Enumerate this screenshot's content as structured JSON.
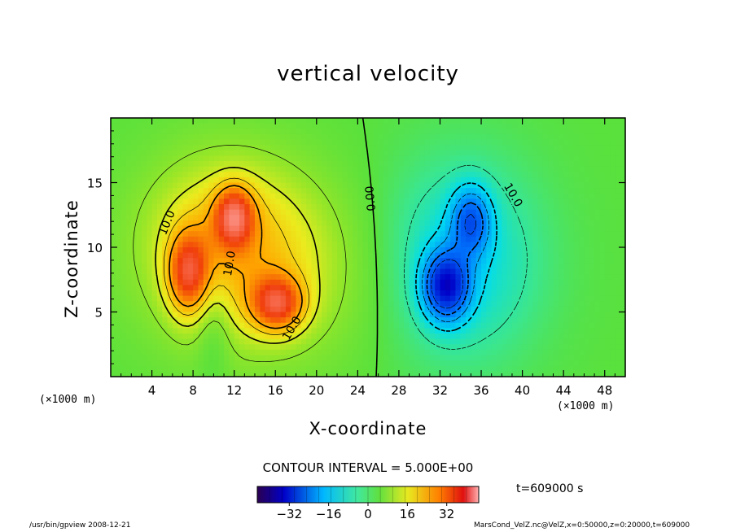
{
  "chart_data": {
    "type": "heatmap",
    "title": "vertical velocity",
    "xlabel": "X-coordinate",
    "ylabel": "Z-coordinate",
    "x_unit": "(×1000 m)",
    "z_unit": "(×1000 m)",
    "xlim": [
      0,
      50
    ],
    "ylim": [
      0,
      20
    ],
    "x_ticks": [
      4,
      8,
      12,
      16,
      20,
      24,
      28,
      32,
      36,
      40,
      44,
      48
    ],
    "y_ticks": [
      5,
      10,
      15
    ],
    "contour_labels": [
      {
        "text": "10.0",
        "x": 5.8,
        "z": 11.8,
        "angle": -68
      },
      {
        "text": "10.0",
        "x": 11.9,
        "z": 8.7,
        "angle": -80
      },
      {
        "text": "10.0",
        "x": 17.9,
        "z": 3.6,
        "angle": -60
      },
      {
        "text": "0.00",
        "x": 25.6,
        "z": 13.8,
        "angle": -95
      },
      {
        "text": "10.0",
        "x": 38.8,
        "z": 13.9,
        "angle": 60
      }
    ],
    "contour_interval": "CONTOUR INTERVAL = 5.000E+00",
    "colorbar": {
      "range": [
        -45,
        45
      ],
      "ticks": [
        -32,
        -16,
        0,
        16,
        32
      ]
    },
    "time_label": "t=609000 s",
    "features": [
      {
        "x": 7.5,
        "z": 8.0,
        "w": 22,
        "sx": 1.4,
        "sz": 2.2
      },
      {
        "x": 12.0,
        "z": 12.4,
        "w": 24,
        "sx": 1.3,
        "sz": 1.6
      },
      {
        "x": 16.2,
        "z": 5.6,
        "w": 24,
        "sx": 1.8,
        "sz": 1.5
      },
      {
        "x": 11.0,
        "z": 11.0,
        "w": 12,
        "sx": 5.5,
        "sz": 4.5
      },
      {
        "x": 15.0,
        "z": 8.0,
        "w": 10,
        "sx": 7.0,
        "sz": 5.0
      },
      {
        "x": 32.6,
        "z": 7.0,
        "w": -28,
        "sx": 1.5,
        "sz": 1.8
      },
      {
        "x": 35.0,
        "z": 12.0,
        "w": -18,
        "sx": 1.3,
        "sz": 1.8
      },
      {
        "x": 34.0,
        "z": 9.0,
        "w": -10,
        "sx": 5.5,
        "sz": 5.5
      },
      {
        "x": 10.0,
        "z": 4.0,
        "w": -6,
        "sx": 1.2,
        "sz": 3.0
      }
    ]
  },
  "footer": {
    "left": "/usr/bin/gpview  2008-12-21",
    "right": "MarsCond_VelZ.nc@VelZ,x=0:50000,z=0:20000,t=609000"
  }
}
